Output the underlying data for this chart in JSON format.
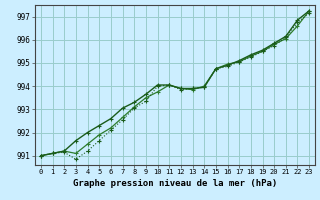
{
  "title": "Graphe pression niveau de la mer (hPa)",
  "bg_color": "#cceeff",
  "grid_color": "#99cccc",
  "line_color_dark": "#1a5c1a",
  "line_color_med": "#2e7d2e",
  "xlim_min": -0.5,
  "xlim_max": 23.5,
  "ylim_min": 990.6,
  "ylim_max": 997.5,
  "xticks": [
    0,
    1,
    2,
    3,
    4,
    5,
    6,
    7,
    8,
    9,
    10,
    11,
    12,
    13,
    14,
    15,
    16,
    17,
    18,
    19,
    20,
    21,
    22,
    23
  ],
  "yticks": [
    991,
    992,
    993,
    994,
    995,
    996,
    997
  ],
  "series1_x": [
    0,
    1,
    2,
    3,
    4,
    5,
    6,
    7,
    8,
    9,
    10,
    11,
    12,
    13,
    14,
    15,
    16,
    17,
    18,
    19,
    20,
    21,
    22,
    23
  ],
  "series1_y": [
    991.0,
    991.1,
    991.15,
    990.85,
    991.2,
    991.65,
    992.1,
    992.55,
    993.05,
    993.35,
    994.0,
    994.05,
    993.85,
    993.9,
    993.95,
    994.75,
    994.85,
    995.05,
    995.25,
    995.5,
    995.75,
    996.1,
    996.75,
    997.15
  ],
  "series2_x": [
    0,
    1,
    2,
    3,
    4,
    5,
    6,
    7,
    8,
    9,
    10,
    11,
    12,
    13,
    14,
    15,
    16,
    17,
    18,
    19,
    20,
    21,
    22,
    23
  ],
  "series2_y": [
    991.0,
    991.1,
    991.2,
    991.65,
    992.0,
    992.3,
    992.6,
    993.05,
    993.3,
    993.65,
    994.05,
    994.05,
    993.9,
    993.9,
    993.95,
    994.75,
    994.9,
    995.1,
    995.35,
    995.55,
    995.85,
    996.15,
    996.85,
    997.25
  ],
  "series3_x": [
    0,
    1,
    2,
    3,
    4,
    5,
    6,
    7,
    8,
    9,
    10,
    11,
    12,
    13,
    14,
    15,
    16,
    17,
    18,
    19,
    20,
    21,
    22,
    23
  ],
  "series3_y": [
    991.0,
    991.1,
    991.2,
    991.1,
    991.5,
    991.9,
    992.2,
    992.65,
    993.1,
    993.5,
    993.75,
    994.05,
    993.9,
    993.85,
    994.0,
    994.75,
    994.95,
    995.05,
    995.3,
    995.5,
    995.8,
    996.05,
    996.6,
    997.25
  ],
  "tick_fontsize": 5.5,
  "xlabel_fontsize": 6.5,
  "spine_color": "#444444"
}
